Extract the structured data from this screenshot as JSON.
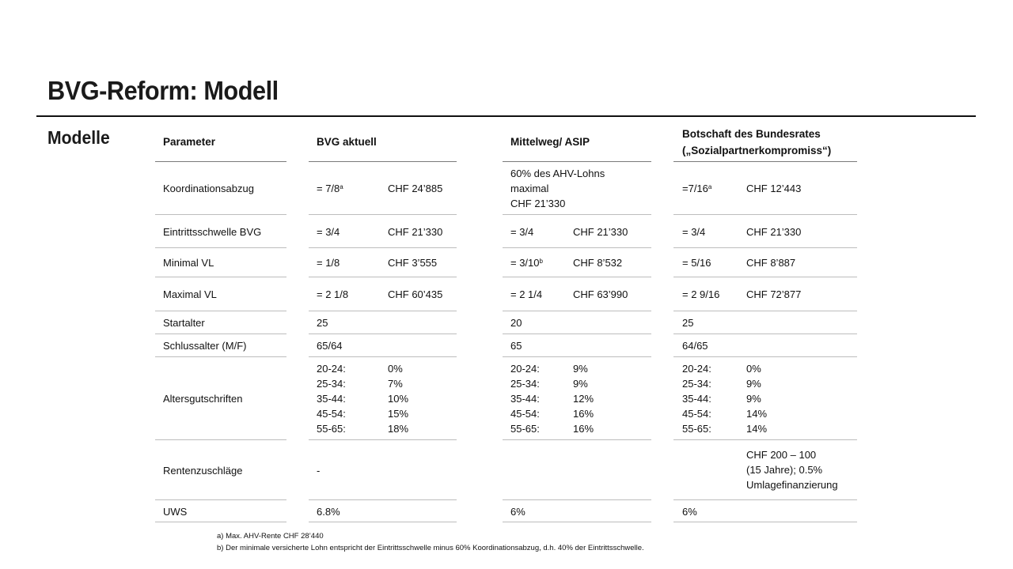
{
  "title": "BVG-Reform: Modell",
  "section_label": "Modelle",
  "table": {
    "headers": {
      "parameter": "Parameter",
      "bvg": "BVG aktuell",
      "mittelweg": "Mittelweg/ ASIP",
      "botschaft_line1": "Botschaft des Bundesrates",
      "botschaft_line2": "(„Sozialpartnerkompromiss“)"
    },
    "rows": {
      "koordination": {
        "label": "Koordinationsabzug",
        "bvg_a": "= 7/8",
        "bvg_a_sup": "a",
        "bvg_b": "CHF 24’885",
        "mw_line1": "60% des AHV-Lohns",
        "mw_line2": "maximal",
        "mw_line3": "CHF 21’330",
        "bs_a": "=7/16",
        "bs_a_sup": "a",
        "bs_b": "CHF 12’443"
      },
      "eintritt": {
        "label": "Eintrittsschwelle BVG",
        "bvg_a": "= 3/4",
        "bvg_b": "CHF 21’330",
        "mw_a": "= 3/4",
        "mw_b": "CHF 21’330",
        "bs_a": "= 3/4",
        "bs_b": "CHF 21’330"
      },
      "minimal": {
        "label": "Minimal VL",
        "bvg_a": "= 1/8",
        "bvg_b": "CHF 3’555",
        "mw_a": "= 3/10",
        "mw_a_sup": "b",
        "mw_b": "CHF 8’532",
        "bs_a": "= 5/16",
        "bs_b": "CHF 8’887"
      },
      "maximal": {
        "label": "Maximal VL",
        "bvg_a": "= 2 1/8",
        "bvg_b": "CHF 60’435",
        "mw_a": "= 2 1/4",
        "mw_b": "CHF 63’990",
        "bs_a": "= 2 9/16",
        "bs_b": "CHF 72’877"
      },
      "startalter": {
        "label": "Startalter",
        "bvg": "25",
        "mw": "20",
        "bs": "25"
      },
      "schlussalter": {
        "label": "Schlussalter (M/F)",
        "bvg": "65/64",
        "mw": "65",
        "bs": "64/65"
      },
      "altersgutschriften": {
        "label": "Altersgutschriften",
        "ages": [
          "20-24:",
          "25-34:",
          "35-44:",
          "45-54:",
          "55-65:"
        ],
        "bvg": [
          "0%",
          "7%",
          "10%",
          "15%",
          "18%"
        ],
        "mw": [
          "9%",
          "9%",
          "12%",
          "16%",
          "16%"
        ],
        "bs": [
          "0%",
          "9%",
          "9%",
          "14%",
          "14%"
        ]
      },
      "rentenzuschlaege": {
        "label": "Rentenzuschläge",
        "bvg": "-",
        "bs_line1": "CHF 200 – 100",
        "bs_line2": "(15 Jahre); 0.5%",
        "bs_line3": "Umlagefinanzierung"
      },
      "uws": {
        "label": "UWS",
        "bvg": "6.8%",
        "mw": "6%",
        "bs": "6%"
      }
    }
  },
  "footnotes": {
    "a": "a)  Max. AHV-Rente CHF 28’440",
    "b": "b)  Der minimale  versicherte Lohn entspricht  der Eintrittsschwelle  minus  60% Koordinationsabzug,  d.h. 40% der Eintrittsschwelle."
  }
}
